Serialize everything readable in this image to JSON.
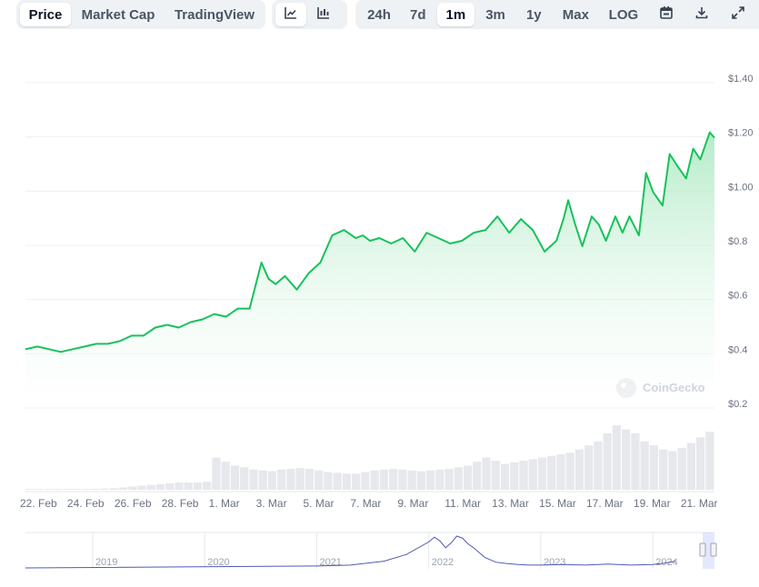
{
  "toolbar": {
    "view_tabs": [
      {
        "label": "Price",
        "active": true
      },
      {
        "label": "Market Cap",
        "active": false
      },
      {
        "label": "TradingView",
        "active": false
      }
    ],
    "chart_type_icons": [
      "line-chart-icon",
      "candlestick-chart-icon"
    ],
    "ranges": [
      {
        "label": "24h",
        "active": false
      },
      {
        "label": "7d",
        "active": false
      },
      {
        "label": "1m",
        "active": true
      },
      {
        "label": "3m",
        "active": false
      },
      {
        "label": "1y",
        "active": false
      },
      {
        "label": "Max",
        "active": false
      }
    ],
    "log_label": "LOG",
    "action_icons": [
      "calendar-icon",
      "download-icon",
      "expand-icon"
    ]
  },
  "watermark": {
    "text": "CoinGecko"
  },
  "colors": {
    "line": "#16c25a",
    "fill_top": "#a7e8bf",
    "volume": "#e6e8ec",
    "navigator_line": "#4f5ab5"
  },
  "chart_data": {
    "type": "area",
    "y_ticks": [
      "$0.2",
      "$0.4",
      "$0.6",
      "$0.8",
      "$1.00",
      "$1.20",
      "$1.40"
    ],
    "y_tick_values": [
      0.2,
      0.4,
      0.6,
      0.8,
      1.0,
      1.2,
      1.4
    ],
    "ylim": [
      0.2,
      1.4
    ],
    "x_ticks": [
      "22. Feb",
      "24. Feb",
      "26. Feb",
      "28. Feb",
      "1. Mar",
      "3. Mar",
      "5. Mar",
      "7. Mar",
      "9. Mar",
      "11. Mar",
      "13. Mar",
      "15. Mar",
      "17. Mar",
      "19. Mar",
      "21. Mar"
    ],
    "x_range_days": [
      0,
      29.2
    ],
    "x_tick_days": [
      0,
      2,
      4,
      6,
      8,
      10,
      12,
      14,
      16,
      18,
      20,
      22,
      24,
      26,
      28
    ],
    "series": [
      {
        "x_days": [
          0,
          0.5,
          1,
          1.5,
          2,
          2.5,
          3,
          3.5,
          4,
          4.5,
          5,
          5.5,
          6,
          6.5,
          7,
          7.5,
          8,
          8.5,
          9,
          9.5,
          10,
          10.3,
          10.6,
          11,
          11.5,
          12,
          12.5,
          13,
          13.5,
          14,
          14.3,
          14.6,
          15,
          15.5,
          16,
          16.5,
          17,
          17.5,
          18,
          18.5,
          19,
          19.5,
          20,
          20.5,
          21,
          21.5,
          22,
          22.5,
          22.8,
          23,
          23.3,
          23.6,
          24,
          24.3,
          24.6,
          25,
          25.3,
          25.6,
          26,
          26.3,
          26.6,
          27,
          27.3,
          27.6,
          28,
          28.3,
          28.6,
          29,
          29.2
        ],
        "values": [
          0.4,
          0.41,
          0.4,
          0.39,
          0.4,
          0.41,
          0.42,
          0.42,
          0.43,
          0.45,
          0.45,
          0.48,
          0.49,
          0.48,
          0.5,
          0.51,
          0.53,
          0.52,
          0.55,
          0.55,
          0.72,
          0.66,
          0.64,
          0.67,
          0.62,
          0.68,
          0.72,
          0.82,
          0.84,
          0.81,
          0.82,
          0.8,
          0.81,
          0.79,
          0.81,
          0.76,
          0.83,
          0.81,
          0.79,
          0.8,
          0.83,
          0.84,
          0.89,
          0.83,
          0.88,
          0.84,
          0.76,
          0.8,
          0.88,
          0.95,
          0.86,
          0.78,
          0.89,
          0.86,
          0.8,
          0.89,
          0.83,
          0.89,
          0.82,
          1.05,
          0.98,
          0.93,
          1.12,
          1.08,
          1.03,
          1.14,
          1.1,
          1.2,
          1.18
        ]
      }
    ],
    "volume": [
      1,
      1,
      1,
      1,
      1,
      1,
      1,
      1.2,
      1.5,
      2,
      3,
      4,
      5,
      6,
      7,
      8,
      9,
      9,
      9,
      10,
      40,
      35,
      30,
      28,
      25,
      24,
      23,
      25,
      26,
      27,
      26,
      24,
      22,
      21,
      20,
      20,
      22,
      24,
      25,
      26,
      25,
      24,
      23,
      24,
      25,
      26,
      28,
      30,
      35,
      40,
      36,
      32,
      34,
      36,
      38,
      40,
      42,
      44,
      46,
      50,
      55,
      60,
      70,
      80,
      75,
      70,
      60,
      55,
      50,
      48,
      52,
      58,
      65,
      72
    ],
    "volume_peak_days": [
      22.8,
      24.4,
      26.3,
      27.2,
      28.0,
      29.0
    ],
    "navigator": {
      "year_labels": [
        "2019",
        "2020",
        "2021",
        "2022",
        "2023",
        "2024"
      ],
      "year_label_offsets": [
        0,
        1,
        2,
        3,
        4,
        5
      ],
      "series_years": [
        2.0,
        2.3,
        2.6,
        2.8,
        3.0,
        3.05,
        3.1,
        3.15,
        3.2,
        3.25,
        3.3,
        3.35,
        3.4,
        3.45,
        3.5,
        3.6,
        3.7,
        3.8,
        3.9,
        4.0,
        4.2,
        4.4,
        4.6,
        4.8,
        5.0,
        5.1,
        5.2
      ],
      "series_values": [
        0.1,
        0.2,
        0.6,
        1.3,
        2.6,
        3.1,
        2.7,
        2.0,
        2.5,
        3.2,
        3.0,
        2.4,
        2.0,
        1.5,
        1.0,
        0.5,
        0.35,
        0.25,
        0.2,
        0.2,
        0.25,
        0.2,
        0.3,
        0.2,
        0.25,
        0.4,
        0.6
      ]
    }
  }
}
